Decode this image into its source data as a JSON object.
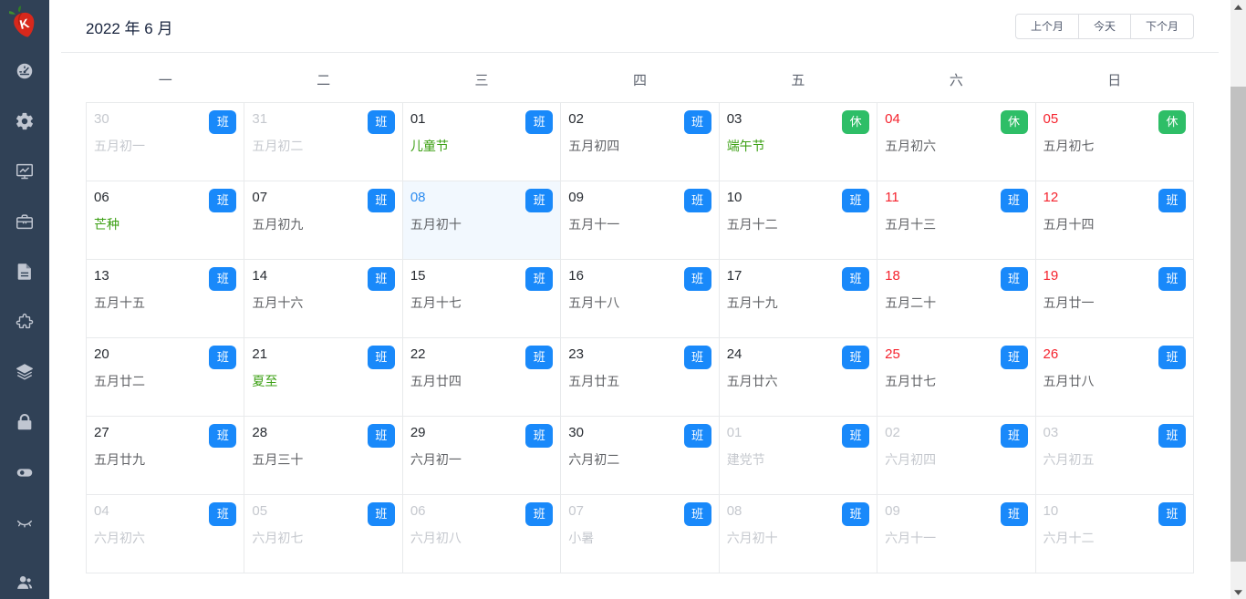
{
  "header": {
    "title": "2022 年 6 月",
    "buttons": {
      "prev": "上个月",
      "today": "今天",
      "next": "下个月"
    }
  },
  "sidebar": {
    "logo": "strawberry-logo",
    "icons": [
      "dashboard",
      "gear",
      "chart-monitor",
      "briefcase",
      "document",
      "puzzle",
      "layers",
      "lock",
      "toggle",
      "eye-off",
      "users"
    ]
  },
  "calendar": {
    "weekdays": [
      "一",
      "二",
      "三",
      "四",
      "五",
      "六",
      "日"
    ],
    "badge_labels": {
      "work": "班",
      "rest": "休"
    },
    "cells": [
      {
        "day": "30",
        "label": "五月初一",
        "month": "prev",
        "badge": "work"
      },
      {
        "day": "31",
        "label": "五月初二",
        "month": "prev",
        "badge": "work"
      },
      {
        "day": "01",
        "label": "儿童节",
        "month": "current",
        "badge": "work",
        "festival": true
      },
      {
        "day": "02",
        "label": "五月初四",
        "month": "current",
        "badge": "work"
      },
      {
        "day": "03",
        "label": "端午节",
        "month": "current",
        "badge": "rest",
        "festival": true
      },
      {
        "day": "04",
        "label": "五月初六",
        "month": "current",
        "badge": "rest",
        "weekend": true
      },
      {
        "day": "05",
        "label": "五月初七",
        "month": "current",
        "badge": "rest",
        "weekend": true
      },
      {
        "day": "06",
        "label": "芒种",
        "month": "current",
        "badge": "work",
        "festival": true
      },
      {
        "day": "07",
        "label": "五月初九",
        "month": "current",
        "badge": "work"
      },
      {
        "day": "08",
        "label": "五月初十",
        "month": "current",
        "badge": "work",
        "today": true
      },
      {
        "day": "09",
        "label": "五月十一",
        "month": "current",
        "badge": "work"
      },
      {
        "day": "10",
        "label": "五月十二",
        "month": "current",
        "badge": "work"
      },
      {
        "day": "11",
        "label": "五月十三",
        "month": "current",
        "badge": "work",
        "weekend": true
      },
      {
        "day": "12",
        "label": "五月十四",
        "month": "current",
        "badge": "work",
        "weekend": true
      },
      {
        "day": "13",
        "label": "五月十五",
        "month": "current",
        "badge": "work"
      },
      {
        "day": "14",
        "label": "五月十六",
        "month": "current",
        "badge": "work"
      },
      {
        "day": "15",
        "label": "五月十七",
        "month": "current",
        "badge": "work"
      },
      {
        "day": "16",
        "label": "五月十八",
        "month": "current",
        "badge": "work"
      },
      {
        "day": "17",
        "label": "五月十九",
        "month": "current",
        "badge": "work"
      },
      {
        "day": "18",
        "label": "五月二十",
        "month": "current",
        "badge": "work",
        "weekend": true
      },
      {
        "day": "19",
        "label": "五月廿一",
        "month": "current",
        "badge": "work",
        "weekend": true
      },
      {
        "day": "20",
        "label": "五月廿二",
        "month": "current",
        "badge": "work"
      },
      {
        "day": "21",
        "label": "夏至",
        "month": "current",
        "badge": "work",
        "festival": true
      },
      {
        "day": "22",
        "label": "五月廿四",
        "month": "current",
        "badge": "work"
      },
      {
        "day": "23",
        "label": "五月廿五",
        "month": "current",
        "badge": "work"
      },
      {
        "day": "24",
        "label": "五月廿六",
        "month": "current",
        "badge": "work"
      },
      {
        "day": "25",
        "label": "五月廿七",
        "month": "current",
        "badge": "work",
        "weekend": true
      },
      {
        "day": "26",
        "label": "五月廿八",
        "month": "current",
        "badge": "work",
        "weekend": true
      },
      {
        "day": "27",
        "label": "五月廿九",
        "month": "current",
        "badge": "work"
      },
      {
        "day": "28",
        "label": "五月三十",
        "month": "current",
        "badge": "work"
      },
      {
        "day": "29",
        "label": "六月初一",
        "month": "current",
        "badge": "work"
      },
      {
        "day": "30",
        "label": "六月初二",
        "month": "current",
        "badge": "work"
      },
      {
        "day": "01",
        "label": "建党节",
        "month": "next",
        "badge": "work"
      },
      {
        "day": "02",
        "label": "六月初四",
        "month": "next",
        "badge": "work"
      },
      {
        "day": "03",
        "label": "六月初五",
        "month": "next",
        "badge": "work"
      },
      {
        "day": "04",
        "label": "六月初六",
        "month": "next",
        "badge": "work"
      },
      {
        "day": "05",
        "label": "六月初七",
        "month": "next",
        "badge": "work"
      },
      {
        "day": "06",
        "label": "六月初八",
        "month": "next",
        "badge": "work"
      },
      {
        "day": "07",
        "label": "小暑",
        "month": "next",
        "badge": "work"
      },
      {
        "day": "08",
        "label": "六月初十",
        "month": "next",
        "badge": "work"
      },
      {
        "day": "09",
        "label": "六月十一",
        "month": "next",
        "badge": "work"
      },
      {
        "day": "10",
        "label": "六月十二",
        "month": "next",
        "badge": "work"
      }
    ]
  },
  "colors": {
    "sidebar_bg": "#304156",
    "icon": "#c0c6d1",
    "work_badge": "#1989fa",
    "rest_badge": "#2ebe67",
    "festival_text": "#3ca014",
    "weekend_text": "#f5222d",
    "today_text": "#2d8cf0",
    "today_bg": "#f2f8fe",
    "other_month_text": "#c5c8ce",
    "border": "#e8eaec"
  }
}
